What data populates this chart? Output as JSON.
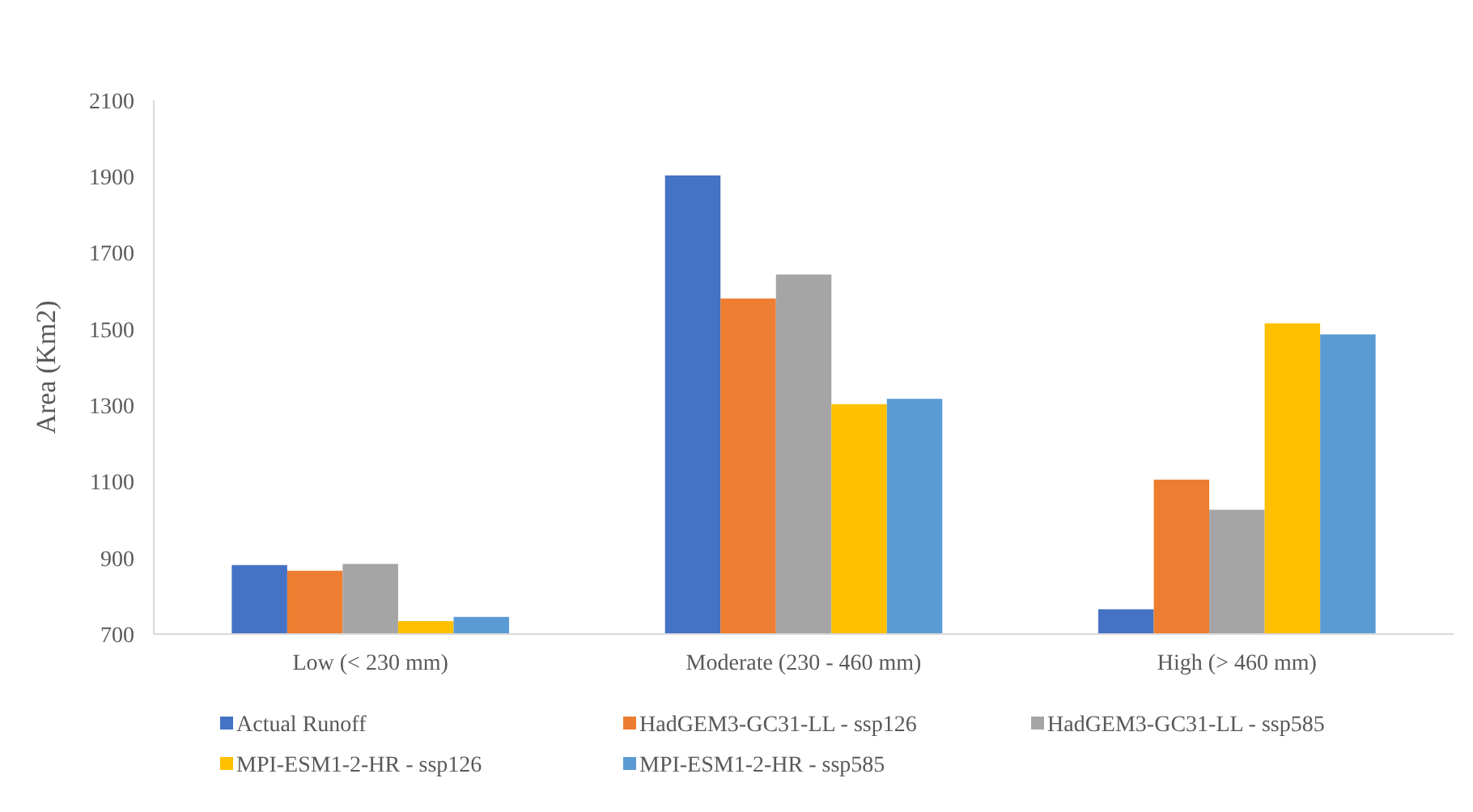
{
  "chart_data": {
    "type": "bar",
    "ylabel": "Area (Km2)",
    "categories": [
      "Low (< 230 mm)",
      "Moderate (230 - 460 mm)",
      "High (> 460 mm)"
    ],
    "series": [
      {
        "name": "Actual Runoff",
        "color": "#4472c4",
        "values": [
          881,
          1903,
          765
        ]
      },
      {
        "name": "HadGEM3-GC31-LL - ssp126",
        "color": "#ed7d31",
        "values": [
          866,
          1580,
          1105
        ]
      },
      {
        "name": "HadGEM3-GC31-LL - ssp585",
        "color": "#a5a5a5",
        "values": [
          884,
          1643,
          1026
        ]
      },
      {
        "name": "MPI-ESM1-2-HR - ssp126",
        "color": "#ffc000",
        "values": [
          734,
          1303,
          1515
        ]
      },
      {
        "name": "MPI-ESM1-2-HR - ssp585",
        "color": "#5b9bd5",
        "values": [
          745,
          1317,
          1486
        ]
      }
    ],
    "ylim": [
      700,
      2100
    ],
    "yticks": [
      700,
      900,
      1100,
      1300,
      1500,
      1700,
      1900,
      2100
    ],
    "grid": false,
    "legend": "bottom"
  }
}
